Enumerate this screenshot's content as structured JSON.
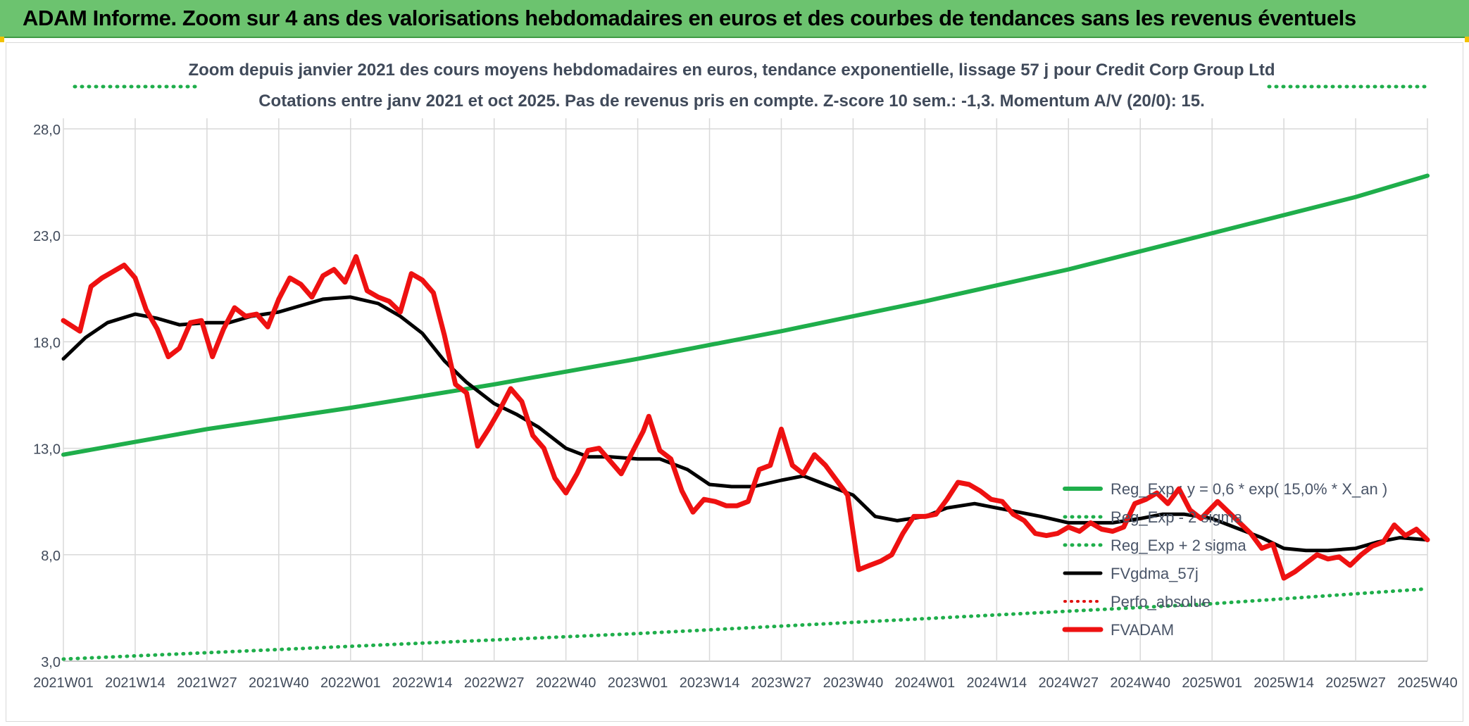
{
  "header": {
    "title": "ADAM Informe. Zoom sur 4 ans des valorisations hebdomadaires en euros et des courbes de tendances sans les revenus éventuels"
  },
  "colors": {
    "header_bg": "#6cc36f",
    "reg_exp": "#1fae4b",
    "sigma": "#1fae4b",
    "fvgdma": "#000000",
    "perfo": "#e0120f",
    "fvadam": "#ee1111",
    "grid": "#d9d9d9",
    "text": "#404a5a"
  },
  "chart_data": {
    "type": "line",
    "title": "Zoom depuis janvier 2021 des cours moyens hebdomadaires en euros, tendance exponentielle, lissage 57 j pour Credit Corp Group Ltd",
    "subtitle": "Cotations entre janv 2021 et oct 2025. Pas de revenus pris en compte. Z-score 10 sem.: -1,3. Momentum A/V (20/0): 15.",
    "xlabel": "",
    "ylabel": "",
    "ylim": [
      3,
      28
    ],
    "y_ticks": [
      "28,0",
      "23,0",
      "18,0",
      "13,0",
      "8,0",
      "3,0"
    ],
    "y_tick_values": [
      28,
      23,
      18,
      13,
      8,
      3
    ],
    "x_range": [
      "2021W01",
      "2025W40"
    ],
    "x_ticks": [
      "2021W01",
      "2021W14",
      "2021W27",
      "2021W40",
      "2022W01",
      "2022W14",
      "2022W27",
      "2022W40",
      "2023W01",
      "2023W14",
      "2023W27",
      "2023W40",
      "2024W01",
      "2024W14",
      "2024W27",
      "2024W40",
      "2025W01",
      "2025W14",
      "2025W27",
      "2025W40"
    ],
    "grid": true,
    "legend_position": "right",
    "series": [
      {
        "name": "Reg_Exp : y = 0,6 * exp( 15,0% * X_an )",
        "style": "solid-thick-green",
        "points": [
          [
            "2021W01",
            12.7
          ],
          [
            "2021W27",
            13.9
          ],
          [
            "2022W01",
            14.9
          ],
          [
            "2022W27",
            16.0
          ],
          [
            "2023W01",
            17.2
          ],
          [
            "2023W27",
            18.5
          ],
          [
            "2024W01",
            19.9
          ],
          [
            "2024W27",
            21.4
          ],
          [
            "2025W01",
            23.1
          ],
          [
            "2025W27",
            24.8
          ],
          [
            "2025W40",
            25.8
          ]
        ]
      },
      {
        "name": "Reg_Exp - 2 sigma",
        "style": "dotted-green",
        "points": [
          [
            "2021W01",
            3.1
          ],
          [
            "2022W01",
            3.7
          ],
          [
            "2023W01",
            4.3
          ],
          [
            "2024W01",
            5.0
          ],
          [
            "2025W01",
            5.7
          ],
          [
            "2025W40",
            6.4
          ]
        ]
      },
      {
        "name": "Reg_Exp + 2 sigma",
        "style": "dotted-green",
        "points": [
          [
            "2021W01",
            29.9
          ],
          [
            "2025W40",
            29.9
          ]
        ]
      },
      {
        "name": "FVgdma_57j",
        "style": "solid-black",
        "points": [
          [
            "2021W01",
            17.2
          ],
          [
            "2021W05",
            18.2
          ],
          [
            "2021W09",
            18.9
          ],
          [
            "2021W14",
            19.3
          ],
          [
            "2021W18",
            19.1
          ],
          [
            "2021W22",
            18.8
          ],
          [
            "2021W27",
            18.9
          ],
          [
            "2021W31",
            18.9
          ],
          [
            "2021W35",
            19.2
          ],
          [
            "2021W40",
            19.4
          ],
          [
            "2021W44",
            19.7
          ],
          [
            "2021W48",
            20.0
          ],
          [
            "2022W01",
            20.1
          ],
          [
            "2022W06",
            19.8
          ],
          [
            "2022W10",
            19.2
          ],
          [
            "2022W14",
            18.4
          ],
          [
            "2022W18",
            17.1
          ],
          [
            "2022W22",
            16.1
          ],
          [
            "2022W27",
            15.1
          ],
          [
            "2022W31",
            14.6
          ],
          [
            "2022W35",
            14.0
          ],
          [
            "2022W40",
            13.0
          ],
          [
            "2022W44",
            12.6
          ],
          [
            "2022W48",
            12.6
          ],
          [
            "2023W01",
            12.5
          ],
          [
            "2023W05",
            12.5
          ],
          [
            "2023W10",
            12.0
          ],
          [
            "2023W14",
            11.3
          ],
          [
            "2023W18",
            11.2
          ],
          [
            "2023W22",
            11.2
          ],
          [
            "2023W27",
            11.5
          ],
          [
            "2023W31",
            11.7
          ],
          [
            "2023W35",
            11.3
          ],
          [
            "2023W40",
            10.8
          ],
          [
            "2023W44",
            9.8
          ],
          [
            "2023W48",
            9.6
          ],
          [
            "2024W01",
            9.8
          ],
          [
            "2024W05",
            10.2
          ],
          [
            "2024W10",
            10.4
          ],
          [
            "2024W14",
            10.2
          ],
          [
            "2024W18",
            10.0
          ],
          [
            "2024W22",
            9.8
          ],
          [
            "2024W27",
            9.5
          ],
          [
            "2024W31",
            9.5
          ],
          [
            "2024W35",
            9.5
          ],
          [
            "2024W40",
            9.7
          ],
          [
            "2024W44",
            9.9
          ],
          [
            "2024W48",
            9.9
          ],
          [
            "2025W01",
            9.7
          ],
          [
            "2025W05",
            9.3
          ],
          [
            "2025W10",
            8.8
          ],
          [
            "2025W14",
            8.3
          ],
          [
            "2025W18",
            8.2
          ],
          [
            "2025W22",
            8.2
          ],
          [
            "2025W27",
            8.3
          ],
          [
            "2025W31",
            8.6
          ],
          [
            "2025W35",
            8.8
          ],
          [
            "2025W40",
            8.7
          ]
        ]
      },
      {
        "name": "Perfo_absolue",
        "style": "dotted-red",
        "points": []
      },
      {
        "name": "FVADAM",
        "style": "solid-thick-red",
        "points": [
          [
            "2021W01",
            19.0
          ],
          [
            "2021W04",
            18.5
          ],
          [
            "2021W06",
            20.6
          ],
          [
            "2021W08",
            21.0
          ],
          [
            "2021W10",
            21.3
          ],
          [
            "2021W12",
            21.6
          ],
          [
            "2021W14",
            21.0
          ],
          [
            "2021W16",
            19.5
          ],
          [
            "2021W18",
            18.6
          ],
          [
            "2021W20",
            17.3
          ],
          [
            "2021W22",
            17.7
          ],
          [
            "2021W24",
            18.9
          ],
          [
            "2021W26",
            19.0
          ],
          [
            "2021W28",
            17.3
          ],
          [
            "2021W30",
            18.6
          ],
          [
            "2021W32",
            19.6
          ],
          [
            "2021W34",
            19.2
          ],
          [
            "2021W36",
            19.3
          ],
          [
            "2021W38",
            18.7
          ],
          [
            "2021W40",
            20.0
          ],
          [
            "2021W42",
            21.0
          ],
          [
            "2021W44",
            20.7
          ],
          [
            "2021W46",
            20.1
          ],
          [
            "2021W48",
            21.1
          ],
          [
            "2021W50",
            21.4
          ],
          [
            "2021W52",
            20.8
          ],
          [
            "2022W02",
            22.0
          ],
          [
            "2022W04",
            20.4
          ],
          [
            "2022W06",
            20.1
          ],
          [
            "2022W08",
            19.9
          ],
          [
            "2022W10",
            19.4
          ],
          [
            "2022W12",
            21.2
          ],
          [
            "2022W14",
            20.9
          ],
          [
            "2022W16",
            20.3
          ],
          [
            "2022W18",
            18.3
          ],
          [
            "2022W20",
            16.0
          ],
          [
            "2022W22",
            15.6
          ],
          [
            "2022W24",
            13.1
          ],
          [
            "2022W26",
            13.9
          ],
          [
            "2022W28",
            14.8
          ],
          [
            "2022W30",
            15.8
          ],
          [
            "2022W32",
            15.2
          ],
          [
            "2022W34",
            13.6
          ],
          [
            "2022W36",
            13.0
          ],
          [
            "2022W38",
            11.6
          ],
          [
            "2022W40",
            10.9
          ],
          [
            "2022W42",
            11.8
          ],
          [
            "2022W44",
            12.9
          ],
          [
            "2022W46",
            13.0
          ],
          [
            "2022W48",
            12.4
          ],
          [
            "2022W50",
            11.8
          ],
          [
            "2022W52",
            12.8
          ],
          [
            "2023W02",
            13.8
          ],
          [
            "2023W03",
            14.5
          ],
          [
            "2023W05",
            12.9
          ],
          [
            "2023W07",
            12.5
          ],
          [
            "2023W09",
            11.0
          ],
          [
            "2023W11",
            10.0
          ],
          [
            "2023W13",
            10.6
          ],
          [
            "2023W15",
            10.5
          ],
          [
            "2023W17",
            10.3
          ],
          [
            "2023W19",
            10.3
          ],
          [
            "2023W21",
            10.5
          ],
          [
            "2023W23",
            12.0
          ],
          [
            "2023W25",
            12.2
          ],
          [
            "2023W27",
            13.9
          ],
          [
            "2023W29",
            12.2
          ],
          [
            "2023W31",
            11.8
          ],
          [
            "2023W33",
            12.7
          ],
          [
            "2023W35",
            12.2
          ],
          [
            "2023W37",
            11.5
          ],
          [
            "2023W39",
            10.8
          ],
          [
            "2023W41",
            7.3
          ],
          [
            "2023W43",
            7.5
          ],
          [
            "2023W45",
            7.7
          ],
          [
            "2023W47",
            8.0
          ],
          [
            "2023W49",
            9.0
          ],
          [
            "2023W51",
            9.8
          ],
          [
            "2024W01",
            9.8
          ],
          [
            "2024W03",
            9.9
          ],
          [
            "2024W05",
            10.6
          ],
          [
            "2024W07",
            11.4
          ],
          [
            "2024W09",
            11.3
          ],
          [
            "2024W11",
            11.0
          ],
          [
            "2024W13",
            10.6
          ],
          [
            "2024W15",
            10.5
          ],
          [
            "2024W17",
            9.9
          ],
          [
            "2024W19",
            9.6
          ],
          [
            "2024W21",
            9.0
          ],
          [
            "2024W23",
            8.9
          ],
          [
            "2024W25",
            9.0
          ],
          [
            "2024W27",
            9.3
          ],
          [
            "2024W29",
            9.1
          ],
          [
            "2024W31",
            9.5
          ],
          [
            "2024W33",
            9.2
          ],
          [
            "2024W35",
            9.1
          ],
          [
            "2024W37",
            9.3
          ],
          [
            "2024W39",
            10.4
          ],
          [
            "2024W41",
            10.6
          ],
          [
            "2024W43",
            10.9
          ],
          [
            "2024W45",
            10.4
          ],
          [
            "2024W47",
            11.1
          ],
          [
            "2024W49",
            10.1
          ],
          [
            "2024W51",
            9.7
          ],
          [
            "2025W02",
            10.5
          ],
          [
            "2025W04",
            10.0
          ],
          [
            "2025W06",
            9.5
          ],
          [
            "2025W08",
            9.0
          ],
          [
            "2025W10",
            8.3
          ],
          [
            "2025W12",
            8.5
          ],
          [
            "2025W14",
            6.9
          ],
          [
            "2025W16",
            7.2
          ],
          [
            "2025W18",
            7.6
          ],
          [
            "2025W20",
            8.0
          ],
          [
            "2025W22",
            7.8
          ],
          [
            "2025W24",
            7.9
          ],
          [
            "2025W26",
            7.5
          ],
          [
            "2025W28",
            8.0
          ],
          [
            "2025W30",
            8.4
          ],
          [
            "2025W32",
            8.6
          ],
          [
            "2025W34",
            9.4
          ],
          [
            "2025W36",
            8.9
          ],
          [
            "2025W38",
            9.2
          ],
          [
            "2025W40",
            8.7
          ]
        ]
      }
    ]
  }
}
